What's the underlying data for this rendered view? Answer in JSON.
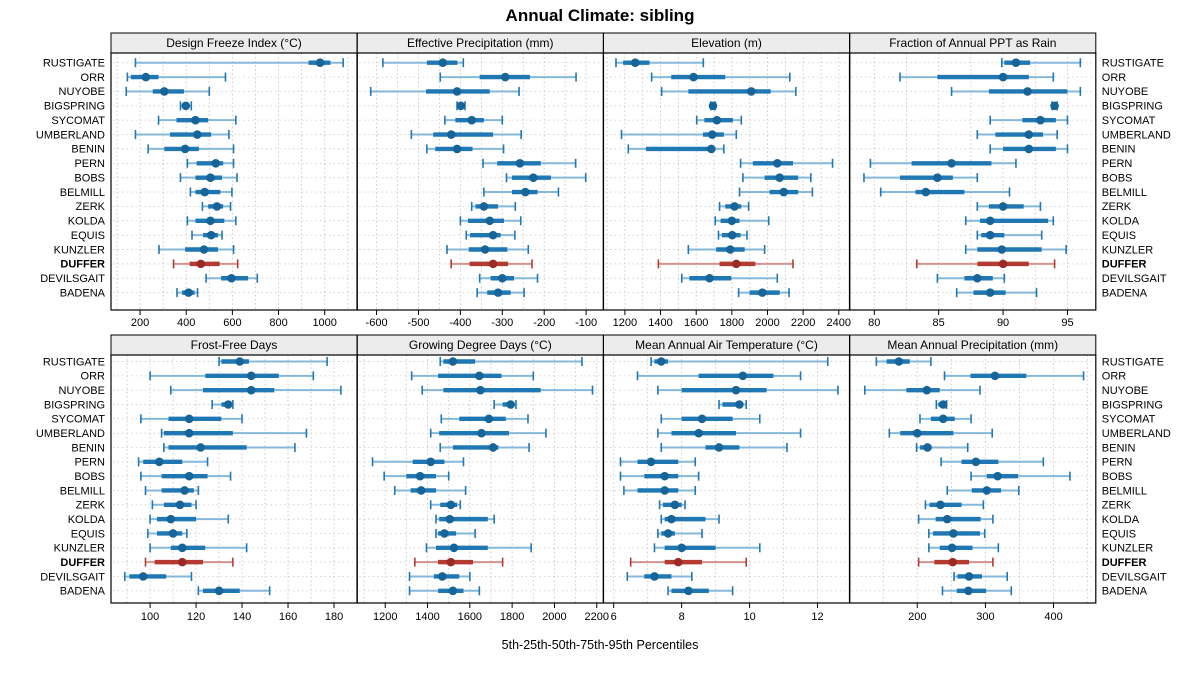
{
  "title": "Annual Climate: sibling",
  "caption": "5th-25th-50th-75th-95th Percentiles",
  "sites": [
    "RUSTIGATE",
    "ORR",
    "NUYOBE",
    "BIGSPRING",
    "SYCOMAT",
    "UMBERLAND",
    "BENIN",
    "PERN",
    "BOBS",
    "BELMILL",
    "ZERK",
    "KOLDA",
    "EQUIS",
    "KUNZLER",
    "DUFFER",
    "DEVILSGAIT",
    "BADENA"
  ],
  "highlight_site": "DUFFER",
  "percentiles": [
    "5th",
    "25th",
    "50th",
    "75th",
    "95th"
  ],
  "colors": {
    "blue": "#1f77b4",
    "blue_light": "#85b8da",
    "blue_dot": "#176499",
    "red": "#b43b32",
    "red_light": "#d4928c",
    "red_dot": "#9c2a24",
    "grid": "#c6c6c6",
    "row_guide": "#cfcfcf",
    "strip_bg": "#ececec",
    "border": "#000000",
    "text": "#000000"
  },
  "chart_data": [
    {
      "type": "scatter",
      "subtype": "dot-whisker-percentiles",
      "title": "Design Freeze Index (°C)",
      "row": 0,
      "col": 0,
      "xlim": [
        74,
        1140
      ],
      "ticks": [
        200,
        400,
        600,
        800,
        1000
      ],
      "tick_labels": [
        "200",
        "400",
        "600",
        "800",
        "1000"
      ],
      "grid_step": 100,
      "values": [
        [
          180,
          930,
          980,
          1025,
          1080
        ],
        [
          145,
          160,
          225,
          280,
          570
        ],
        [
          140,
          255,
          305,
          390,
          500
        ],
        [
          375,
          385,
          398,
          410,
          422
        ],
        [
          280,
          358,
          440,
          495,
          615
        ],
        [
          180,
          330,
          448,
          508,
          585
        ],
        [
          235,
          305,
          395,
          455,
          605
        ],
        [
          405,
          445,
          528,
          560,
          605
        ],
        [
          375,
          440,
          505,
          555,
          620
        ],
        [
          418,
          440,
          480,
          548,
          598
        ],
        [
          470,
          495,
          533,
          560,
          592
        ],
        [
          405,
          440,
          505,
          565,
          615
        ],
        [
          425,
          473,
          508,
          538,
          555
        ],
        [
          282,
          395,
          477,
          538,
          605
        ],
        [
          345,
          415,
          463,
          545,
          623
        ],
        [
          486,
          551,
          596,
          668,
          708
        ],
        [
          360,
          382,
          410,
          436,
          449
        ]
      ]
    },
    {
      "type": "scatter",
      "subtype": "dot-whisker-percentiles",
      "title": "Effective Precipitation (mm)",
      "row": 0,
      "col": 1,
      "xlim": [
        -646,
        -59
      ],
      "ticks": [
        -600,
        -500,
        -400,
        -300,
        -200,
        -100
      ],
      "tick_labels": [
        "-600",
        "-500",
        "-400",
        "-300",
        "-200",
        "-100"
      ],
      "grid_step": 50,
      "values": [
        [
          -585,
          -480,
          -442,
          -407,
          -393
        ],
        [
          -448,
          -354,
          -293,
          -234,
          -124
        ],
        [
          -614,
          -482,
          -408,
          -330,
          -260
        ],
        [
          -408,
          -403,
          -399,
          -395,
          -389
        ],
        [
          -437,
          -412,
          -373,
          -344,
          -300
        ],
        [
          -517,
          -465,
          -422,
          -322,
          -255
        ],
        [
          -480,
          -460,
          -408,
          -371,
          -297
        ],
        [
          -346,
          -312,
          -258,
          -208,
          -125
        ],
        [
          -290,
          -277,
          -226,
          -184,
          -101
        ],
        [
          -344,
          -277,
          -245,
          -216,
          -166
        ],
        [
          -373,
          -364,
          -344,
          -310,
          -269
        ],
        [
          -400,
          -382,
          -330,
          -296,
          -256
        ],
        [
          -386,
          -377,
          -322,
          -304,
          -270
        ],
        [
          -432,
          -380,
          -341,
          -288,
          -238
        ],
        [
          -422,
          -378,
          -322,
          -286,
          -229
        ],
        [
          -354,
          -328,
          -300,
          -272,
          -216
        ],
        [
          -360,
          -336,
          -310,
          -280,
          -248
        ]
      ]
    },
    {
      "type": "scatter",
      "subtype": "dot-whisker-percentiles",
      "title": "Elevation (m)",
      "row": 0,
      "col": 2,
      "xlim": [
        1080,
        2460
      ],
      "ticks": [
        1200,
        1400,
        1600,
        1800,
        2000,
        2200,
        2400
      ],
      "tick_labels": [
        "1200",
        "1400",
        "1600",
        "1800",
        "2000",
        "2200",
        "2400"
      ],
      "grid_step": 100,
      "values": [
        [
          1150,
          1190,
          1258,
          1338,
          1640
        ],
        [
          1350,
          1460,
          1585,
          1763,
          2125
        ],
        [
          1406,
          1556,
          1909,
          2018,
          2159
        ],
        [
          1682,
          1689,
          1694,
          1699,
          1707
        ],
        [
          1603,
          1646,
          1716,
          1806,
          1853
        ],
        [
          1181,
          1638,
          1690,
          1755,
          1825
        ],
        [
          1219,
          1318,
          1685,
          1703,
          1755
        ],
        [
          1849,
          1918,
          2055,
          2143,
          2365
        ],
        [
          1862,
          1984,
          2068,
          2172,
          2243
        ],
        [
          1843,
          2012,
          2091,
          2172,
          2252
        ],
        [
          1731,
          1763,
          1815,
          1853,
          1894
        ],
        [
          1707,
          1737,
          1800,
          1843,
          2007
        ],
        [
          1725,
          1744,
          1802,
          1849,
          1885
        ],
        [
          1556,
          1712,
          1791,
          1872,
          1984
        ],
        [
          1388,
          1731,
          1825,
          1932,
          2143
        ],
        [
          1519,
          1562,
          1675,
          1797,
          2055
        ],
        [
          1838,
          1900,
          1971,
          2069,
          2121
        ]
      ]
    },
    {
      "type": "scatter",
      "subtype": "dot-whisker-percentiles",
      "title": "Fraction of Annual PPT as Rain",
      "row": 0,
      "col": 3,
      "xlim": [
        78.1,
        97.2
      ],
      "ticks": [
        80,
        85,
        90,
        95
      ],
      "tick_labels": [
        "80",
        "85",
        "90",
        "95"
      ],
      "grid_step": 2.5,
      "values": [
        [
          89.9,
          90.1,
          91.0,
          92.1,
          96.0
        ],
        [
          82.0,
          84.9,
          90.0,
          92.0,
          93.9
        ],
        [
          86.0,
          88.9,
          91.9,
          95.0,
          96.0
        ],
        [
          93.8,
          93.9,
          94.0,
          94.1,
          94.2
        ],
        [
          89.0,
          91.5,
          92.9,
          94.1,
          95.0
        ],
        [
          88.0,
          89.4,
          92.0,
          93.1,
          94.2
        ],
        [
          89.0,
          90.0,
          92.0,
          94.1,
          95.0
        ],
        [
          79.7,
          82.9,
          86.0,
          89.1,
          91.0
        ],
        [
          79.2,
          82.0,
          84.9,
          86.1,
          88.0
        ],
        [
          80.5,
          83.2,
          84.0,
          87.0,
          90.5
        ],
        [
          88.0,
          88.9,
          90.0,
          91.6,
          92.9
        ],
        [
          87.1,
          88.2,
          89.0,
          93.5,
          93.9
        ],
        [
          88.0,
          88.3,
          89.0,
          90.1,
          93.0
        ],
        [
          87.1,
          88.0,
          89.9,
          93.0,
          94.9
        ],
        [
          83.3,
          88.0,
          90.0,
          92.0,
          94.0
        ],
        [
          84.9,
          87.0,
          88.0,
          89.2,
          90.1
        ],
        [
          86.4,
          87.7,
          89.0,
          90.2,
          92.6
        ]
      ]
    },
    {
      "type": "scatter",
      "subtype": "dot-whisker-percentiles",
      "title": "Frost-Free Days",
      "row": 1,
      "col": 0,
      "xlim": [
        83,
        190
      ],
      "ticks": [
        100,
        120,
        140,
        160,
        180
      ],
      "tick_labels": [
        "100",
        "120",
        "140",
        "160",
        "180"
      ],
      "grid_step": 10,
      "values": [
        [
          130,
          131,
          139,
          143,
          177
        ],
        [
          100,
          124,
          144,
          156,
          171
        ],
        [
          109,
          123,
          144,
          154,
          183
        ],
        [
          127,
          131,
          134,
          135,
          136
        ],
        [
          96,
          108,
          117,
          131,
          140
        ],
        [
          105,
          106,
          117,
          136,
          168
        ],
        [
          106,
          108,
          122,
          142,
          163
        ],
        [
          95,
          97,
          104,
          114,
          125
        ],
        [
          96,
          105,
          117,
          125,
          135
        ],
        [
          98,
          105,
          115,
          119,
          121
        ],
        [
          101,
          106,
          113,
          118,
          120
        ],
        [
          100,
          103,
          109,
          120,
          134
        ],
        [
          99,
          103,
          110,
          114,
          116
        ],
        [
          100,
          109,
          114,
          124,
          142
        ],
        [
          98,
          102,
          114,
          123,
          136
        ],
        [
          89,
          91,
          97,
          107,
          118
        ],
        [
          121,
          123,
          130,
          139,
          152
        ]
      ]
    },
    {
      "type": "scatter",
      "subtype": "dot-whisker-percentiles",
      "title": "Growing Degree Days (°C)",
      "row": 1,
      "col": 1,
      "xlim": [
        1068,
        2231
      ],
      "ticks": [
        1200,
        1400,
        1600,
        1800,
        2000,
        2200
      ],
      "tick_labels": [
        "1200",
        "1400",
        "1600",
        "1800",
        "2000",
        "2200"
      ],
      "grid_step": 100,
      "values": [
        [
          1460,
          1475,
          1520,
          1625,
          2130
        ],
        [
          1325,
          1450,
          1645,
          1750,
          1900
        ],
        [
          1375,
          1475,
          1650,
          1935,
          2180
        ],
        [
          1715,
          1755,
          1793,
          1810,
          1818
        ],
        [
          1465,
          1550,
          1690,
          1770,
          1875
        ],
        [
          1415,
          1455,
          1655,
          1785,
          1960
        ],
        [
          1460,
          1520,
          1710,
          1735,
          1880
        ],
        [
          1140,
          1330,
          1415,
          1480,
          1570
        ],
        [
          1195,
          1300,
          1365,
          1440,
          1500
        ],
        [
          1245,
          1320,
          1370,
          1440,
          1580
        ],
        [
          1415,
          1460,
          1510,
          1540,
          1555
        ],
        [
          1440,
          1455,
          1505,
          1685,
          1715
        ],
        [
          1440,
          1450,
          1480,
          1535,
          1625
        ],
        [
          1395,
          1440,
          1525,
          1685,
          1890
        ],
        [
          1340,
          1450,
          1510,
          1615,
          1755
        ],
        [
          1315,
          1430,
          1470,
          1550,
          1600
        ],
        [
          1315,
          1450,
          1520,
          1570,
          1645
        ]
      ]
    },
    {
      "type": "scatter",
      "subtype": "dot-whisker-percentiles",
      "title": "Mean Annual Air Temperature (°C)",
      "row": 1,
      "col": 2,
      "xlim": [
        5.7,
        12.94
      ],
      "ticks": [
        6,
        8,
        10,
        12
      ],
      "tick_labels": [
        "6",
        "8",
        "10",
        "12"
      ],
      "grid_step": 1,
      "values": [
        [
          7.1,
          7.2,
          7.4,
          7.6,
          12.3
        ],
        [
          6.7,
          8.5,
          9.8,
          10.7,
          11.5
        ],
        [
          7.3,
          8.0,
          9.6,
          10.5,
          12.6
        ],
        [
          9.1,
          9.2,
          9.7,
          9.8,
          9.9
        ],
        [
          7.4,
          8.0,
          8.6,
          9.5,
          10.3
        ],
        [
          7.3,
          7.7,
          8.5,
          9.6,
          11.5
        ],
        [
          7.4,
          8.7,
          9.1,
          9.7,
          11.1
        ],
        [
          6.2,
          6.7,
          7.1,
          7.9,
          8.4
        ],
        [
          6.2,
          6.9,
          7.5,
          7.9,
          8.5
        ],
        [
          6.3,
          6.7,
          7.5,
          7.9,
          8.4
        ],
        [
          7.35,
          7.45,
          7.8,
          8.0,
          8.1
        ],
        [
          7.4,
          7.5,
          7.7,
          8.7,
          9.1
        ],
        [
          7.3,
          7.4,
          7.6,
          7.8,
          8.6
        ],
        [
          7.2,
          7.5,
          8.0,
          9.0,
          10.3
        ],
        [
          6.5,
          7.5,
          7.9,
          8.6,
          9.9
        ],
        [
          6.4,
          6.9,
          7.2,
          7.7,
          8.3
        ],
        [
          7.6,
          7.7,
          8.2,
          8.8,
          9.5
        ]
      ]
    },
    {
      "type": "scatter",
      "subtype": "dot-whisker-percentiles",
      "title": "Mean Annual Precipitation (mm)",
      "row": 1,
      "col": 3,
      "xlim": [
        101,
        462
      ],
      "ticks": [
        200,
        300,
        400
      ],
      "tick_labels": [
        "200",
        "300",
        "400"
      ],
      "grid_step": 50,
      "values": [
        [
          140,
          155,
          173,
          189,
          220
        ],
        [
          240,
          278,
          314,
          360,
          444
        ],
        [
          123,
          184,
          214,
          233,
          292
        ],
        [
          228,
          231,
          238,
          241,
          243
        ],
        [
          204,
          220,
          238,
          255,
          279
        ],
        [
          159,
          175,
          200,
          253,
          310
        ],
        [
          199,
          204,
          215,
          221,
          274
        ],
        [
          235,
          265,
          286,
          319,
          385
        ],
        [
          279,
          302,
          318,
          348,
          424
        ],
        [
          244,
          280,
          302,
          323,
          349
        ],
        [
          212,
          218,
          234,
          265,
          297
        ],
        [
          202,
          227,
          244,
          293,
          311
        ],
        [
          217,
          223,
          253,
          292,
          299
        ],
        [
          217,
          233,
          251,
          281,
          319
        ],
        [
          202,
          225,
          252,
          276,
          311
        ],
        [
          254,
          259,
          276,
          295,
          332
        ],
        [
          237,
          258,
          275,
          301,
          338
        ]
      ]
    }
  ]
}
